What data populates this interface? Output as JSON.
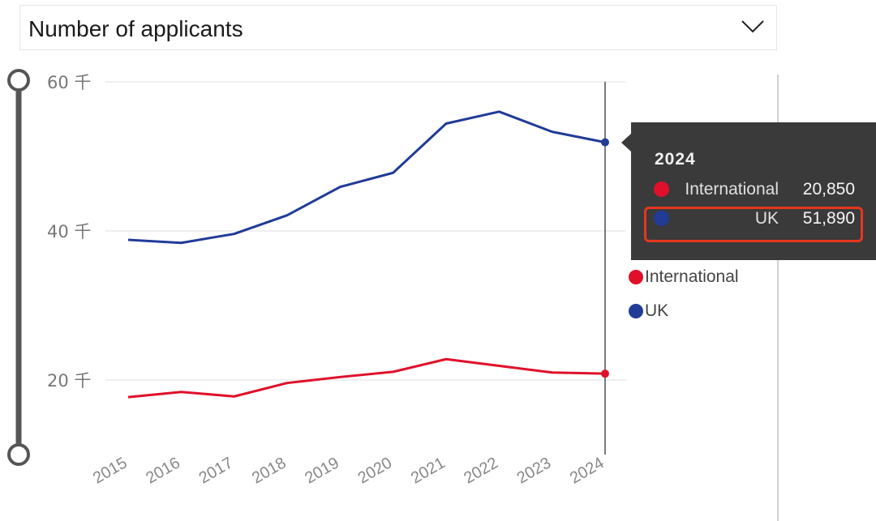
{
  "measure_select": {
    "selected": "Number of applicants"
  },
  "colors": {
    "international": "#e0102a",
    "uk": "#213b97",
    "tooltip_bg": "#3a3a3a",
    "highlight": "#e8361f",
    "slider": "#555555"
  },
  "chart_data": {
    "type": "line",
    "x": [
      2015,
      2016,
      2017,
      2018,
      2019,
      2020,
      2021,
      2022,
      2023,
      2024
    ],
    "x_tick_labels": [
      "2015",
      "2016",
      "2017",
      "2018",
      "2019",
      "2020",
      "2021",
      "2022",
      "2023",
      "2024"
    ],
    "series": [
      {
        "name": "International",
        "values": [
          17700,
          18400,
          17800,
          19600,
          20400,
          21100,
          22800,
          21900,
          21000,
          20850
        ]
      },
      {
        "name": "UK",
        "values": [
          38800,
          38400,
          39600,
          42100,
          45900,
          47800,
          54400,
          56000,
          53300,
          51890
        ]
      }
    ],
    "ylim": [
      10000,
      60000
    ],
    "y_ticks": [
      {
        "value": 20000,
        "label": "20 千"
      },
      {
        "value": 40000,
        "label": "40 千"
      },
      {
        "value": 60000,
        "label": "60 千"
      }
    ],
    "grid": true,
    "legend_position": "right",
    "title": "",
    "xlabel": "",
    "ylabel": ""
  },
  "legend": {
    "items": [
      {
        "label": "International"
      },
      {
        "label": "UK"
      }
    ]
  },
  "tooltip": {
    "title": "2024",
    "rows": [
      {
        "label": "International",
        "value": "20,850"
      },
      {
        "label": "UK",
        "value": "51,890"
      }
    ]
  },
  "range_slider": {
    "min_handle": "lower",
    "max_handle": "upper"
  }
}
